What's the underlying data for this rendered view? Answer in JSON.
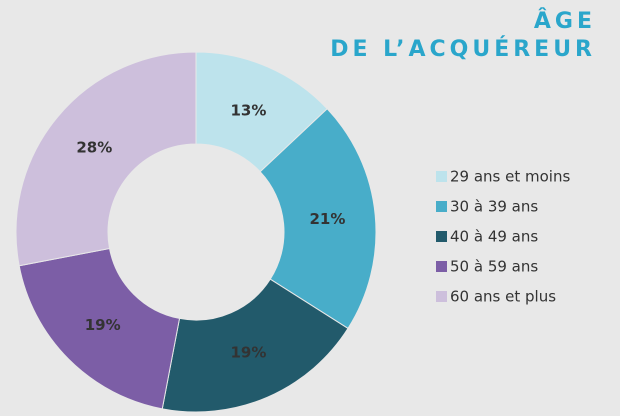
{
  "chart_data": {
    "type": "pie",
    "title": "ÂGE",
    "subtitle": "DE L’ACQUÉREUR",
    "categories": [
      "29 ans et moins",
      "30 à 39 ans",
      "40 à 49 ans",
      "50 à 59 ans",
      "60 ans et plus"
    ],
    "values": [
      13,
      21,
      19,
      19,
      28
    ],
    "value_labels": [
      "13%",
      "21%",
      "19%",
      "19%",
      "28%"
    ],
    "colors": [
      "#bde3ec",
      "#48adc9",
      "#225a6b",
      "#7c5ea6",
      "#cdbfdc"
    ],
    "legend": "right"
  }
}
